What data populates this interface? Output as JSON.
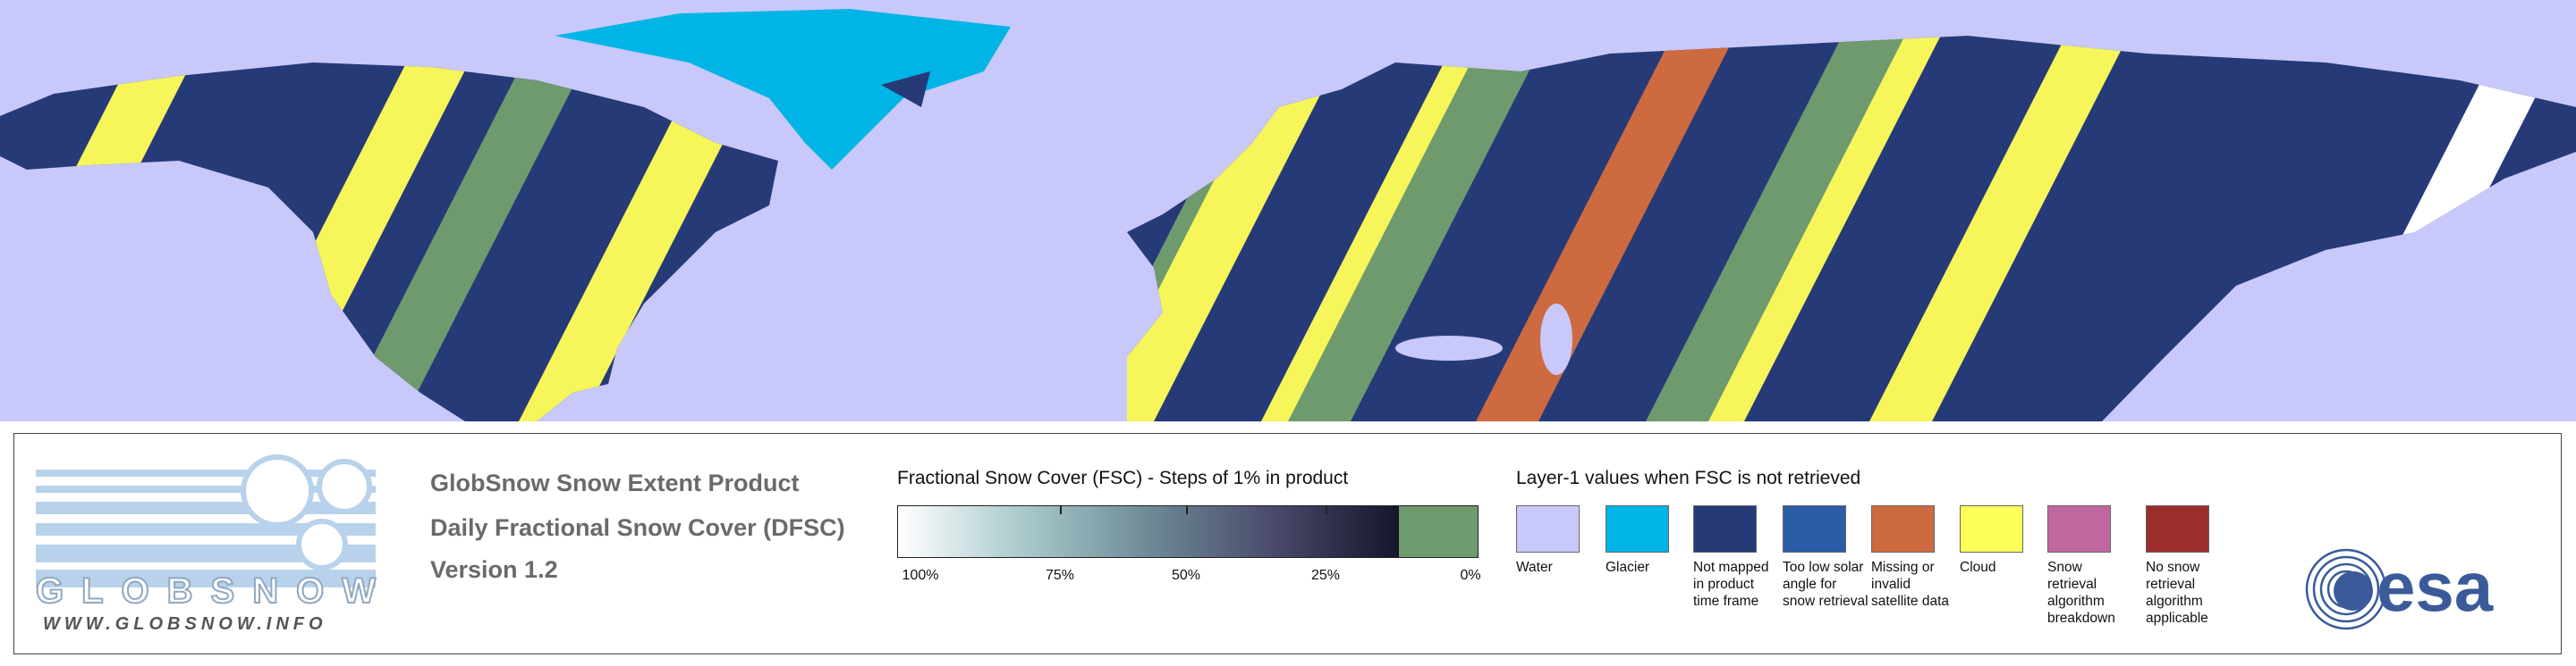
{
  "logo": {
    "name": "GLOBSNOW",
    "url": "WWW.GLOBSNOW.INFO"
  },
  "product": {
    "title": "GlobSnow Snow Extent Product",
    "subtitle": "Daily Fractional Snow Cover (DFSC)",
    "version": "Version 1.2"
  },
  "fsc_legend": {
    "title": "Fractional Snow Cover (FSC) - Steps of 1% in product",
    "gradient": [
      "#ffffff",
      "#a9c9cb",
      "#6e8a96",
      "#4a4a6c",
      "#15152a"
    ],
    "not_retrieved_color": "#6f9a6e",
    "tick_labels": [
      "100%",
      "75%",
      "50%",
      "25%",
      "0%"
    ]
  },
  "layer1_legend": {
    "title": "Layer-1 values when FSC is not retrieved",
    "items": [
      {
        "label": "Water",
        "color": "#c8c8fa"
      },
      {
        "label": "Glacier",
        "color": "#00b4e6"
      },
      {
        "label": "Not mapped in product time frame",
        "color": "#263a78"
      },
      {
        "label": "Too low solar angle for snow retrieval",
        "color": "#2a5ca8"
      },
      {
        "label": "Missing or invalid satellite data",
        "color": "#cd6a3f"
      },
      {
        "label": "Cloud",
        "color": "#ffff5a"
      },
      {
        "label": "Snow retrieval algorithm breakdown",
        "color": "#c0679f"
      },
      {
        "label": "No snow retrieval algorithm applicable",
        "color": "#9b2d2d"
      }
    ]
  },
  "agency": "esa"
}
